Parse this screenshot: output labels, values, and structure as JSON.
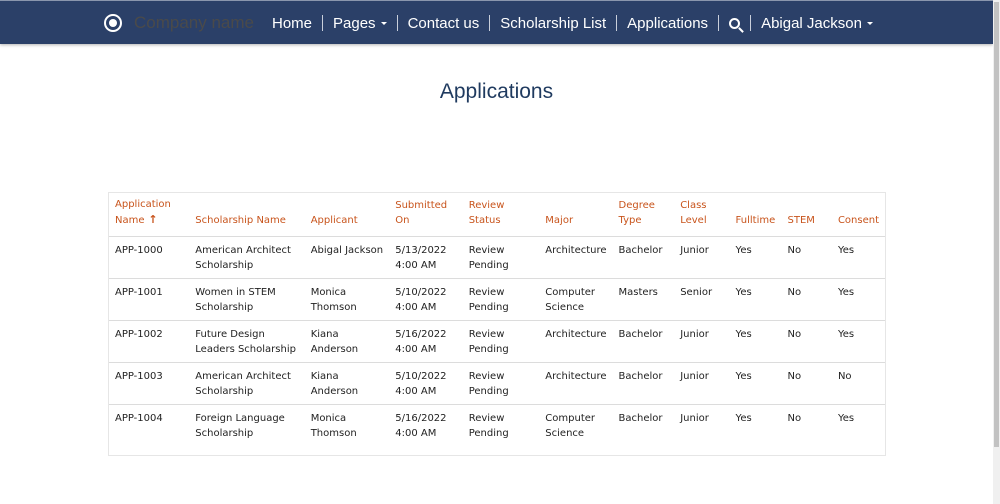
{
  "nav": {
    "brand": "Company name",
    "items": [
      "Home",
      "Pages",
      "Contact us",
      "Scholarship List",
      "Applications"
    ],
    "user": "Abigal Jackson"
  },
  "page": {
    "title": "Applications"
  },
  "table": {
    "headers": [
      "Application Name",
      "Scholarship Name",
      "Applicant",
      "Submitted On",
      "Review Status",
      "Major",
      "Degree Type",
      "Class Level",
      "Fulltime",
      "STEM",
      "Consent"
    ],
    "sort": "ascending",
    "rows": [
      [
        "APP-1000",
        "American Architect Scholarship",
        "Abigal Jackson",
        "5/13/2022 4:00 AM",
        "Review Pending",
        "Architecture",
        "Bachelor",
        "Junior",
        "Yes",
        "No",
        "Yes"
      ],
      [
        "APP-1001",
        "Women in STEM Scholarship",
        "Monica Thomson",
        "5/10/2022 4:00 AM",
        "Review Pending",
        "Computer Science",
        "Masters",
        "Senior",
        "Yes",
        "No",
        "Yes"
      ],
      [
        "APP-1002",
        "Future Design Leaders Scholarship",
        "Kiana Anderson",
        "5/16/2022 4:00 AM",
        "Review Pending",
        "Architecture",
        "Bachelor",
        "Junior",
        "Yes",
        "No",
        "Yes"
      ],
      [
        "APP-1003",
        "American Architect Scholarship",
        "Kiana Anderson",
        "5/10/2022 4:00 AM",
        "Review Pending",
        "Architecture",
        "Bachelor",
        "Junior",
        "Yes",
        "No",
        "No"
      ],
      [
        "APP-1004",
        "Foreign Language Scholarship",
        "Monica Thomson",
        "5/16/2022 4:00 AM",
        "Review Pending",
        "Computer Science",
        "Bachelor",
        "Junior",
        "Yes",
        "No",
        "Yes"
      ]
    ]
  },
  "colors": {
    "nav": "#2b4068",
    "header_text": "#c8541c",
    "title": "#1f3a5f"
  }
}
